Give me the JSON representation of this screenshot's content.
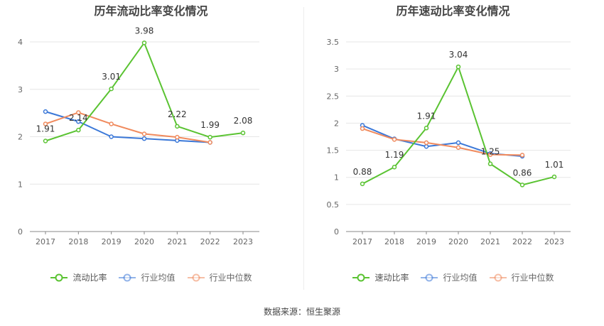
{
  "source": "数据来源：恒生聚源",
  "chart_data": [
    {
      "type": "line",
      "title": "历年流动比率变化情况",
      "categories": [
        "2017",
        "2018",
        "2019",
        "2020",
        "2021",
        "2022",
        "2023"
      ],
      "ylim": [
        0,
        4
      ],
      "yticks": [
        0,
        1,
        2,
        3,
        4
      ],
      "grid": true,
      "legend_position": "bottom",
      "series": [
        {
          "name": "流动比率",
          "color": "#5ac332",
          "labeled": true,
          "values": [
            1.91,
            2.14,
            3.01,
            3.98,
            2.22,
            1.99,
            2.08
          ]
        },
        {
          "name": "行业均值",
          "color": "#3b78d8",
          "labeled": false,
          "values": [
            2.53,
            2.32,
            2.0,
            1.96,
            1.92,
            1.88,
            null
          ]
        },
        {
          "name": "行业中位数",
          "color": "#f08a5d",
          "labeled": false,
          "values": [
            2.27,
            2.51,
            2.27,
            2.06,
            1.99,
            1.88,
            null
          ]
        }
      ],
      "data_labels": [
        "1.91",
        "2.14",
        "3.01",
        "3.98",
        "2.22",
        "1.99",
        "2.08"
      ]
    },
    {
      "type": "line",
      "title": "历年速动比率变化情况",
      "categories": [
        "2017",
        "2018",
        "2019",
        "2020",
        "2021",
        "2022",
        "2023"
      ],
      "ylim": [
        0,
        3.5
      ],
      "yticks": [
        0,
        0.5,
        1,
        1.5,
        2,
        2.5,
        3,
        3.5
      ],
      "grid": true,
      "legend_position": "bottom",
      "series": [
        {
          "name": "速动比率",
          "color": "#5ac332",
          "labeled": true,
          "values": [
            0.88,
            1.19,
            1.91,
            3.04,
            1.25,
            0.86,
            1.01
          ]
        },
        {
          "name": "行业均值",
          "color": "#3b78d8",
          "labeled": false,
          "values": [
            1.96,
            1.71,
            1.57,
            1.64,
            1.44,
            1.39,
            null
          ]
        },
        {
          "name": "行业中位数",
          "color": "#f08a5d",
          "labeled": false,
          "values": [
            1.9,
            1.7,
            1.64,
            1.55,
            1.42,
            1.41,
            null
          ]
        }
      ],
      "data_labels": [
        "0.88",
        "1.19",
        "1.91",
        "3.04",
        "1.25",
        "0.86",
        "1.01"
      ]
    }
  ]
}
